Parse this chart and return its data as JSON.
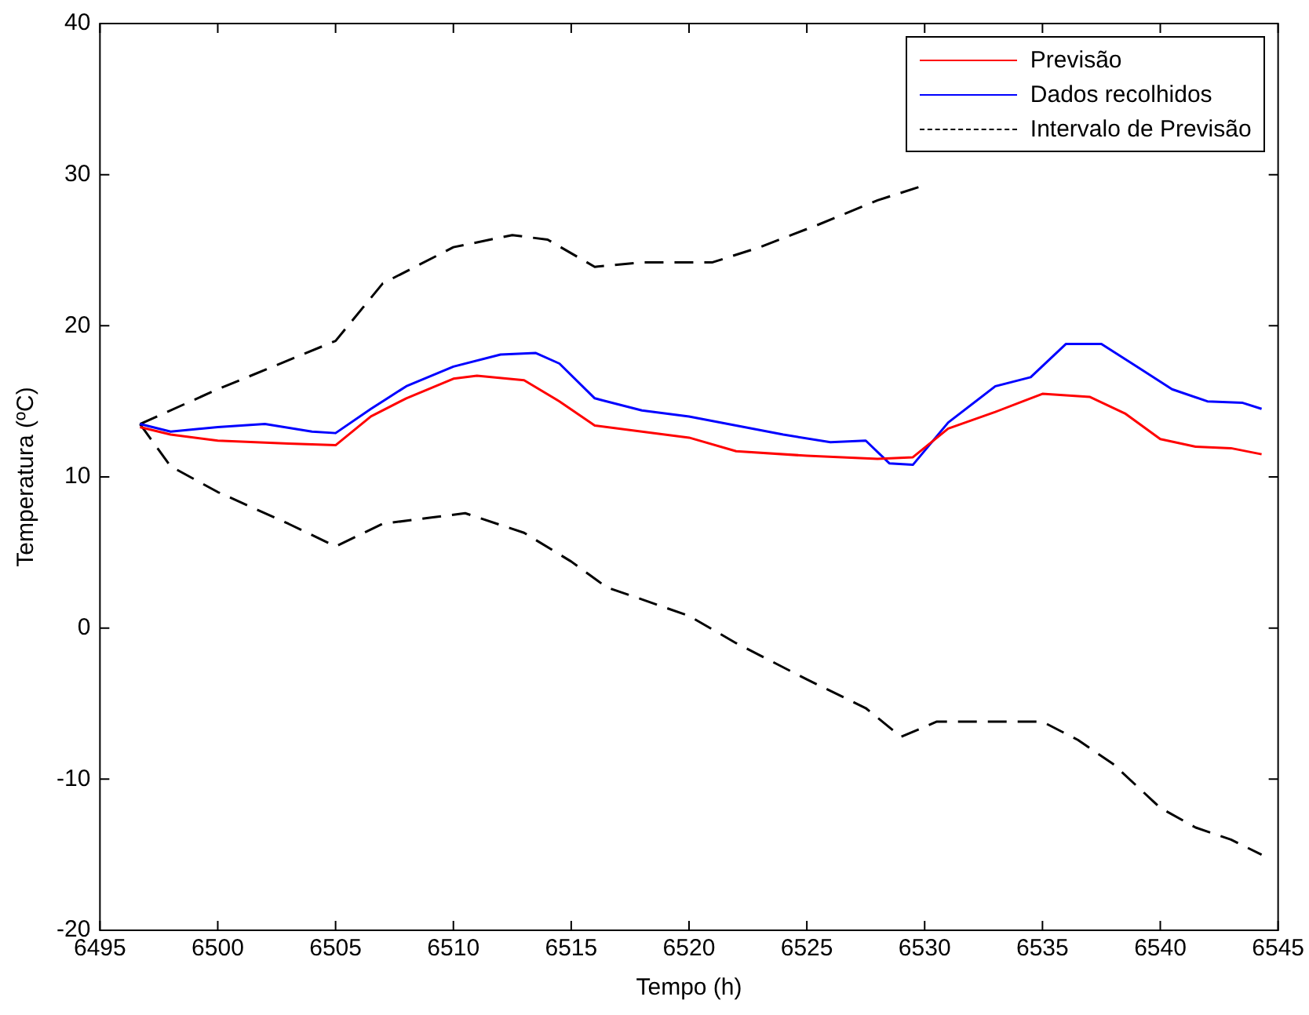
{
  "chart_data": {
    "type": "line",
    "xlabel": "Tempo (h)",
    "ylabel": "Temperatura (ºC)",
    "xlim": [
      6495,
      6545
    ],
    "xticks": [
      6495,
      6500,
      6505,
      6510,
      6515,
      6520,
      6525,
      6530,
      6535,
      6540,
      6545
    ],
    "ylim": [
      -20,
      40
    ],
    "yticks": [
      -20,
      -10,
      0,
      10,
      20,
      30,
      40
    ],
    "grid": false,
    "legend": "top right",
    "marker": "none",
    "series": [
      {
        "name": "Previsão",
        "color": "#ff0000",
        "line_style": "solid",
        "x": [
          6496.7,
          6498,
          6500,
          6503,
          6505,
          6506.5,
          6508,
          6510,
          6511,
          6513,
          6514.5,
          6516,
          6518,
          6520,
          6522,
          6525,
          6528,
          6529.5,
          6531,
          6533,
          6535,
          6537,
          6538.5,
          6540,
          6541.5,
          6543,
          6544.3
        ],
        "values": [
          13.3,
          12.8,
          12.4,
          12.2,
          12.1,
          14.0,
          15.2,
          16.5,
          16.7,
          16.4,
          15.0,
          13.4,
          13.0,
          12.6,
          11.7,
          11.4,
          11.2,
          11.3,
          13.2,
          14.3,
          15.5,
          15.3,
          14.2,
          12.5,
          12.0,
          11.9,
          11.5
        ]
      },
      {
        "name": "Dados recolhidos",
        "color": "#0000ff",
        "line_style": "solid",
        "x": [
          6496.7,
          6498,
          6500,
          6502,
          6504,
          6505,
          6506.5,
          6508,
          6510,
          6512,
          6513.5,
          6514.5,
          6516,
          6518,
          6520,
          6522,
          6524,
          6526,
          6527.5,
          6528.5,
          6529.5,
          6531,
          6533,
          6534.5,
          6536,
          6537.5,
          6539,
          6540.5,
          6542,
          6543.5,
          6544.3
        ],
        "values": [
          13.5,
          13.0,
          13.3,
          13.5,
          13.0,
          12.9,
          14.5,
          16.0,
          17.3,
          18.1,
          18.2,
          17.5,
          15.2,
          14.4,
          14.0,
          13.4,
          12.8,
          12.3,
          12.4,
          10.9,
          10.8,
          13.6,
          16.0,
          16.6,
          18.8,
          18.8,
          17.3,
          15.8,
          15.0,
          14.9,
          14.5
        ]
      },
      {
        "name": "Intervalo de Previsão",
        "color": "#000000",
        "line_style": "dashed",
        "x": [
          6496.7,
          6500,
          6505,
          6507,
          6510,
          6512.5,
          6514,
          6516,
          6518,
          6521,
          6523,
          6525.5,
          6528,
          6530
        ],
        "values": [
          13.5,
          15.8,
          19.0,
          22.8,
          25.2,
          26.0,
          25.7,
          23.9,
          24.2,
          24.2,
          25.2,
          26.7,
          28.3,
          29.3
        ]
      },
      {
        "color": "#000000",
        "line_style": "dashed",
        "x": [
          6496.7,
          6498,
          6500,
          6503,
          6505,
          6507,
          6509,
          6510.5,
          6513,
          6515,
          6516.5,
          6518,
          6520,
          6522,
          6525,
          6527.5,
          6529,
          6530.5,
          6533,
          6535,
          6536.5,
          6538,
          6540,
          6541.5,
          6543,
          6544.3
        ],
        "values": [
          13.5,
          10.7,
          9.0,
          6.9,
          5.4,
          6.9,
          7.3,
          7.6,
          6.3,
          4.4,
          2.7,
          1.9,
          0.8,
          -1.0,
          -3.4,
          -5.3,
          -7.2,
          -6.2,
          -6.2,
          -6.2,
          -7.4,
          -9.0,
          -11.9,
          -13.2,
          -14.0,
          -15.0
        ]
      }
    ]
  }
}
